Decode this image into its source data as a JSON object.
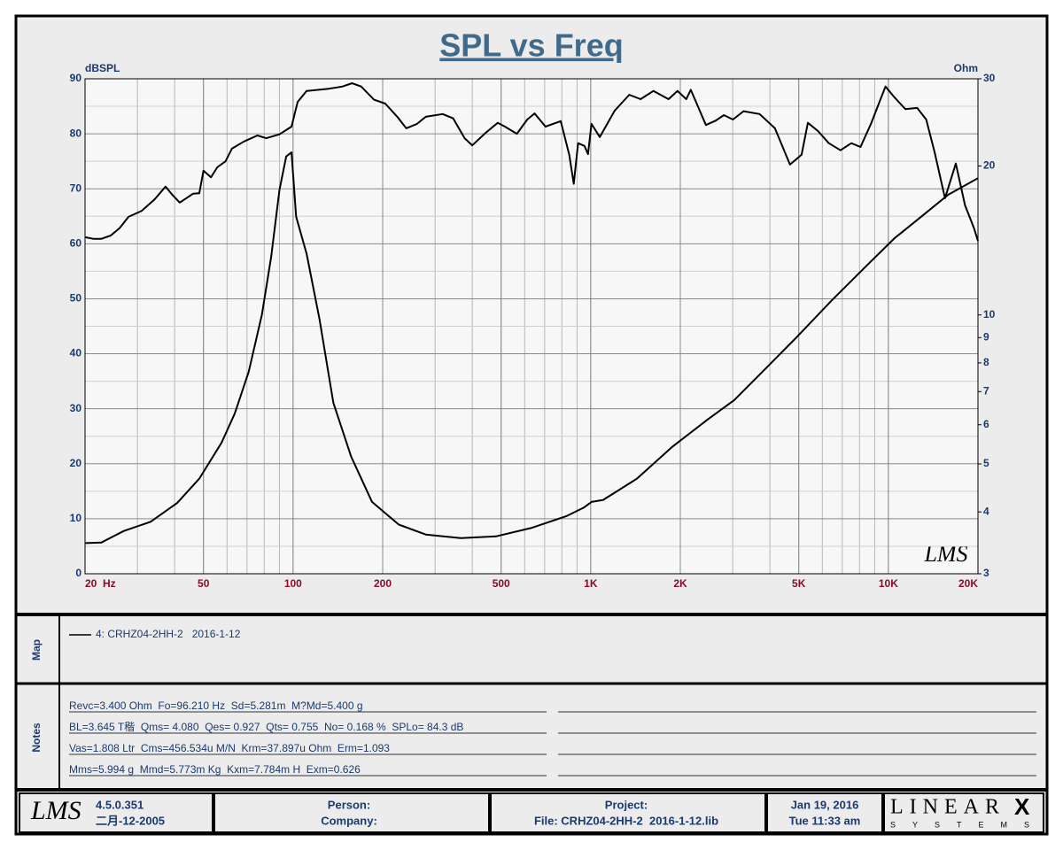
{
  "chart_data": {
    "type": "line",
    "title": "SPL vs Freq",
    "ylabel": "dBSPL",
    "y2label": "Ohm",
    "xlog": true,
    "y2log": true,
    "grid": true,
    "minor_grid": true,
    "xlim": [
      20,
      20000
    ],
    "ylim": [
      0,
      90
    ],
    "y2lim": [
      3,
      30
    ],
    "xticks": [
      {
        "value": 20,
        "label": "20  Hz"
      },
      50,
      100,
      200,
      500,
      {
        "value": 1000,
        "label": "1K"
      },
      {
        "value": 2000,
        "label": "2K"
      },
      {
        "value": 5000,
        "label": "5K"
      },
      {
        "value": 10000,
        "label": "10K"
      },
      {
        "value": 20000,
        "label": "20K"
      }
    ],
    "yticks": [
      0,
      10,
      20,
      30,
      40,
      50,
      60,
      70,
      80,
      90
    ],
    "y2ticks": [
      3,
      4,
      5,
      6,
      7,
      8,
      9,
      10,
      20,
      30
    ],
    "watermark": "LMS",
    "series": [
      {
        "name": "4: CRHZ04-2HH-2   2016-1-12",
        "color": "#000000",
        "x": [
          20,
          21.3,
          22.7,
          24.4,
          26.1,
          28,
          31,
          34.3,
          37.3,
          39.3,
          41.6,
          46.1,
          48.4,
          50,
          53,
          55.6,
          59.3,
          62.3,
          68.4,
          75.9,
          81.3,
          90,
          98.8,
          103.6,
          111,
          131.8,
          146.6,
          157.8,
          169.3,
          187,
          204,
          224,
          240,
          261,
          279,
          318,
          345,
          377,
          400,
          444,
          487,
          515,
          565,
          612,
          648,
          705,
          793,
          847,
          877,
          907,
          953,
          979,
          1006,
          1073,
          1204,
          1348,
          1470,
          1625,
          1826,
          1957,
          2094,
          2169,
          2438,
          2631,
          2802,
          3004,
          3263,
          3693,
          4159,
          4672,
          5110,
          5367,
          5802,
          6308,
          6905,
          7510,
          8059,
          8738,
          9781,
          10497,
          11404,
          12500,
          13400,
          14300,
          15500,
          16850,
          18100,
          19400,
          20000
        ],
        "values": [
          61.2,
          60.9,
          60.9,
          61.5,
          62.8,
          64.9,
          66.0,
          68.1,
          70.4,
          68.9,
          67.5,
          69.1,
          69.2,
          73.3,
          72.1,
          73.9,
          75.0,
          77.3,
          78.6,
          79.7,
          79.2,
          79.9,
          81.3,
          85.8,
          87.8,
          88.2,
          88.6,
          89.2,
          88.6,
          86.2,
          85.5,
          83.1,
          81.0,
          81.8,
          83.1,
          83.6,
          82.8,
          79.2,
          77.9,
          80.2,
          82.0,
          81.3,
          80.0,
          82.6,
          83.7,
          81.3,
          82.3,
          76.2,
          70.9,
          78.3,
          77.8,
          76.3,
          81.8,
          79.4,
          84.2,
          87.1,
          86.3,
          87.8,
          86.3,
          87.8,
          86.3,
          88.0,
          81.6,
          82.4,
          83.4,
          82.6,
          84.1,
          83.6,
          81.0,
          74.4,
          76.2,
          82.0,
          80.5,
          78.3,
          77.0,
          78.3,
          77.6,
          81.8,
          88.6,
          86.6,
          84.5,
          84.7,
          82.6,
          76.7,
          68.3,
          74.6,
          67.0,
          62.8,
          60.5
        ]
      },
      {
        "color": "#000000",
        "axis": "y2",
        "x": [
          20,
          22.7,
          27,
          33.2,
          40.8,
          48.4,
          57.5,
          63.7,
          70.9,
          78.6,
          84.4,
          90,
          94.8,
          98.8,
          102.4,
          111,
          122.7,
          136.5,
          156.6,
          184.2,
          226.5,
          279,
          366,
          480,
          630,
          826,
          947,
          1006,
          1101,
          1430,
          1883,
          2474,
          3033,
          3730,
          4906,
          6450,
          8480,
          10500,
          12900,
          15900,
          20000
        ],
        "values": [
          3.46,
          3.47,
          3.66,
          3.82,
          4.17,
          4.67,
          5.52,
          6.32,
          7.67,
          10.02,
          13.1,
          17.9,
          20.9,
          21.3,
          15.8,
          13.3,
          9.8,
          6.65,
          5.18,
          4.19,
          3.77,
          3.6,
          3.54,
          3.57,
          3.71,
          3.92,
          4.08,
          4.19,
          4.23,
          4.67,
          5.42,
          6.15,
          6.73,
          7.62,
          9.0,
          10.7,
          12.6,
          14.3,
          15.8,
          17.5,
          18.9
        ]
      }
    ]
  },
  "map": {
    "label": "Map"
  },
  "notes": {
    "label": "Notes",
    "lines": [
      "Revc=3.400 Ohm  Fo=96.210 Hz  Sd=5.281m  M?Md=5.400 g",
      "BL=3.645 T稭  Qms= 4.080  Qes= 0.927  Qts= 0.755  No= 0.168 %  SPLo= 84.3 dB",
      "Vas=1.808 Ltr  Cms=456.534u M/N  Krm=37.897u Ohm  Erm=1.093",
      "Mms=5.994 g  Mmd=5.773m Kg  Kxm=7.784m H  Exm=0.626"
    ]
  },
  "footer": {
    "logo": "LMS",
    "version": "4.5.0.351",
    "build_date": "二月-12-2005",
    "person": "Person:",
    "company": "Company:",
    "project": "Project:",
    "file": "File: CRHZ04-2HH-2  2016-1-12.lib",
    "date": "Jan 19, 2016",
    "time": "Tue 11:33 am",
    "brand": "LINEAR",
    "brand_x": "X",
    "brand_sub": "SYSTEMS"
  }
}
